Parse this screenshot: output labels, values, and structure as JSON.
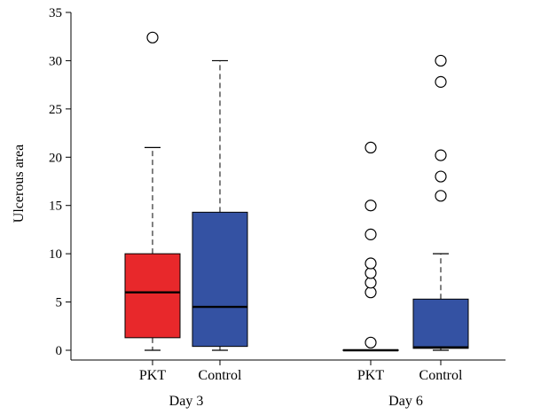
{
  "chart_data": {
    "type": "boxplot",
    "ylabel": "Ulcerous area",
    "ylim": [
      -1,
      35
    ],
    "yticks": [
      0,
      5,
      10,
      15,
      20,
      25,
      30,
      35
    ],
    "groups": [
      {
        "label": "Day 3",
        "boxes": [
          {
            "label": "PKT",
            "color": "#e8282b",
            "whisker_low": 0,
            "q1": 1.3,
            "median": 6.0,
            "q3": 10.0,
            "whisker_high": 21.0,
            "outliers": [
              32.4
            ]
          },
          {
            "label": "Control",
            "color": "#3452a3",
            "whisker_low": 0,
            "q1": 0.4,
            "median": 4.5,
            "q3": 14.3,
            "whisker_high": 30.0,
            "outliers": []
          }
        ]
      },
      {
        "label": "Day 6",
        "boxes": [
          {
            "label": "PKT",
            "color": "#e8282b",
            "whisker_low": 0,
            "q1": 0,
            "median": 0,
            "q3": 0.05,
            "whisker_high": 0.05,
            "outliers": [
              0.8,
              6.0,
              7.0,
              8.0,
              9.0,
              12.0,
              15.0,
              21.0
            ]
          },
          {
            "label": "Control",
            "color": "#3452a3",
            "whisker_low": 0,
            "q1": 0.2,
            "median": 0.3,
            "q3": 5.3,
            "whisker_high": 10.0,
            "outliers": [
              16.0,
              18.0,
              20.2,
              27.8,
              30.0
            ]
          }
        ]
      }
    ]
  }
}
